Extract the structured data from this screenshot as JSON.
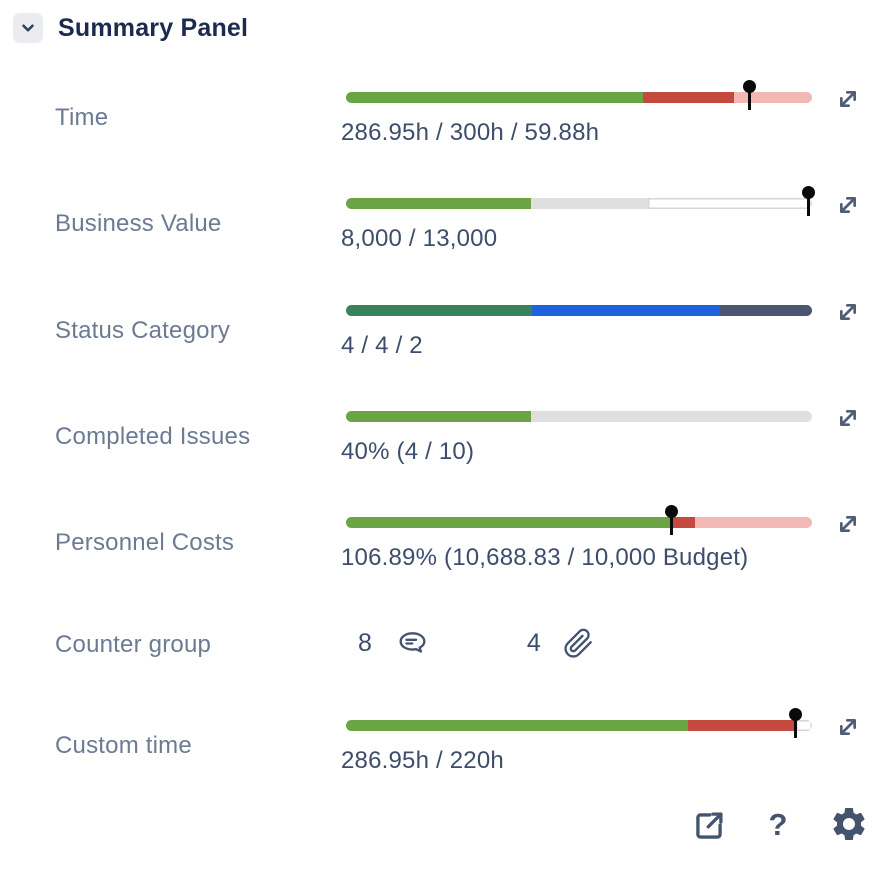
{
  "header": {
    "title": "Summary Panel"
  },
  "colors": {
    "green": "#6BA445",
    "red": "#C4493F",
    "pink": "#F2B8B4",
    "track_gray": "#DFDFDF",
    "white": "#FFFFFF",
    "status_green": "#37845B",
    "status_blue": "#1D63E0",
    "status_dark": "#495670",
    "label_text": "#6C7A93",
    "value_text": "#3D4D6B",
    "icon_slate": "#44546F",
    "marker_black": "#0A0A0A"
  },
  "rows": [
    {
      "label": "Time",
      "value": "286.95h / 300h / 59.88h",
      "segments": [
        {
          "color": "green",
          "width": 63.7
        },
        {
          "color": "red",
          "width": 19.5
        },
        {
          "color": "pink",
          "width": 16.8
        }
      ],
      "marker": 86.5
    },
    {
      "label": "Business Value",
      "value": "8,000 / 13,000",
      "segments": [
        {
          "color": "green",
          "width": 39.8
        },
        {
          "color": "track_gray",
          "width": 25.1
        },
        {
          "color": "white",
          "width": 35.1,
          "outlined": true
        }
      ],
      "marker": 99.3
    },
    {
      "label": "Status Category",
      "value": "4 / 4 / 2",
      "segments": [
        {
          "color": "status_green",
          "width": 40.0
        },
        {
          "color": "status_blue",
          "width": 40.3
        },
        {
          "color": "status_dark",
          "width": 19.7
        }
      ],
      "marker": null
    },
    {
      "label": "Completed Issues",
      "value": "40% (4 / 10)",
      "segments": [
        {
          "color": "green",
          "width": 39.8
        },
        {
          "color": "track_gray",
          "width": 60.2
        }
      ],
      "marker": null
    },
    {
      "label": "Personnel Costs",
      "value": "106.89% (10,688.83 / 10,000 Budget)",
      "segments": [
        {
          "color": "green",
          "width": 69.9
        },
        {
          "color": "red",
          "width": 5.0
        },
        {
          "color": "pink",
          "width": 25.1
        }
      ],
      "marker": 69.9
    },
    {
      "label": "Custom time",
      "value": "286.95h / 220h",
      "segments": [
        {
          "color": "green",
          "width": 73.4
        },
        {
          "color": "red",
          "width": 23.1
        },
        {
          "color": "white",
          "width": 3.5,
          "outlined": true
        }
      ],
      "marker": 96.5
    }
  ],
  "counter_row": {
    "label": "Counter group",
    "counters": [
      {
        "value": "8",
        "icon": "comment-icon"
      },
      {
        "value": "4",
        "icon": "paperclip-icon"
      }
    ]
  },
  "footer": {
    "help_label": "?"
  }
}
